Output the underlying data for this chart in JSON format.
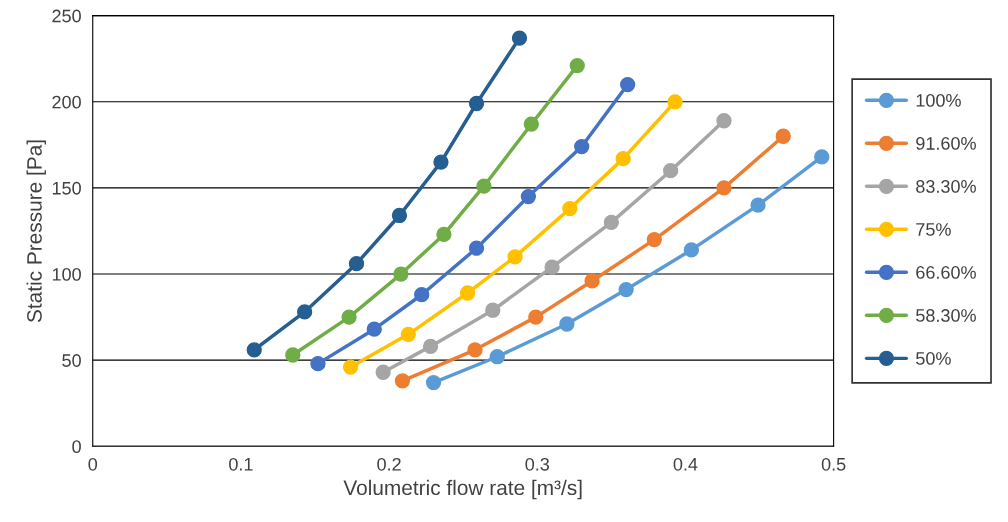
{
  "chart_data": {
    "type": "line",
    "xlabel": "Volumetric flow rate [m³/s]",
    "ylabel": "Static Pressure [Pa]",
    "xlim": [
      0,
      0.5
    ],
    "xticks": [
      0,
      0.1,
      0.2,
      0.3,
      0.4,
      0.5
    ],
    "ylim": [
      0,
      250
    ],
    "yticks": [
      0,
      50,
      100,
      150,
      200,
      250
    ],
    "grid": "y",
    "legend": "right",
    "marker": "circle",
    "line_style": "solid",
    "series": [
      {
        "name": "100%",
        "color": "#5b9bd5",
        "x": [
          0.23,
          0.273,
          0.32,
          0.36,
          0.404,
          0.449,
          0.492
        ],
        "values": [
          37,
          52,
          71,
          91,
          114,
          140,
          168
        ]
      },
      {
        "name": "91.60%",
        "color": "#ed7d31",
        "x": [
          0.209,
          0.258,
          0.299,
          0.337,
          0.379,
          0.426,
          0.466
        ],
        "values": [
          38,
          56,
          75,
          96,
          120,
          150,
          180
        ]
      },
      {
        "name": "83.30%",
        "color": "#a5a5a5",
        "x": [
          0.196,
          0.228,
          0.27,
          0.31,
          0.35,
          0.39,
          0.426
        ],
        "values": [
          43,
          58,
          79,
          104,
          130,
          160,
          189
        ]
      },
      {
        "name": "75%",
        "color": "#ffc000",
        "x": [
          0.174,
          0.213,
          0.253,
          0.285,
          0.322,
          0.358,
          0.393
        ],
        "values": [
          46,
          65,
          89,
          110,
          138,
          167,
          200
        ]
      },
      {
        "name": "66.60%",
        "color": "#4472c4",
        "x": [
          0.152,
          0.19,
          0.222,
          0.259,
          0.294,
          0.33,
          0.361
        ],
        "values": [
          48,
          68,
          88,
          115,
          145,
          174,
          210
        ]
      },
      {
        "name": "58.30%",
        "color": "#70ad47",
        "x": [
          0.135,
          0.173,
          0.208,
          0.237,
          0.264,
          0.296,
          0.327
        ],
        "values": [
          53,
          75,
          100,
          123,
          151,
          187,
          221
        ]
      },
      {
        "name": "50%",
        "color": "#255e91",
        "x": [
          0.109,
          0.143,
          0.178,
          0.207,
          0.235,
          0.259,
          0.288
        ],
        "values": [
          56,
          78,
          106,
          134,
          165,
          199,
          237
        ]
      }
    ]
  }
}
